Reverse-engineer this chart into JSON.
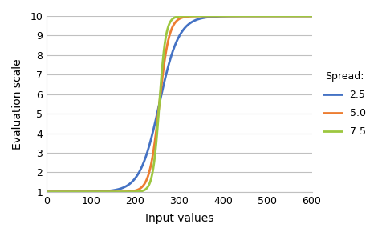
{
  "title": "",
  "xlabel": "Input values",
  "ylabel": "Evaluation scale",
  "xlim": [
    0,
    600
  ],
  "ylim": [
    1,
    10
  ],
  "xticks": [
    0,
    100,
    200,
    300,
    400,
    500,
    600
  ],
  "yticks": [
    1,
    2,
    3,
    4,
    5,
    6,
    7,
    8,
    9,
    10
  ],
  "curves": [
    {
      "spread": 2.5,
      "color": "#4472C4",
      "label": "2.5"
    },
    {
      "spread": 5.0,
      "color": "#ED7D31",
      "label": "5.0"
    },
    {
      "spread": 7.5,
      "color": "#9DC740",
      "label": "7.5"
    }
  ],
  "midpoint": 255,
  "scale_factor": 55.0,
  "y_min": 1,
  "y_max": 10,
  "legend_title": "Spread:",
  "grid_color": "#C0C0C0",
  "bg_color": "#FFFFFF",
  "line_width": 2.0
}
